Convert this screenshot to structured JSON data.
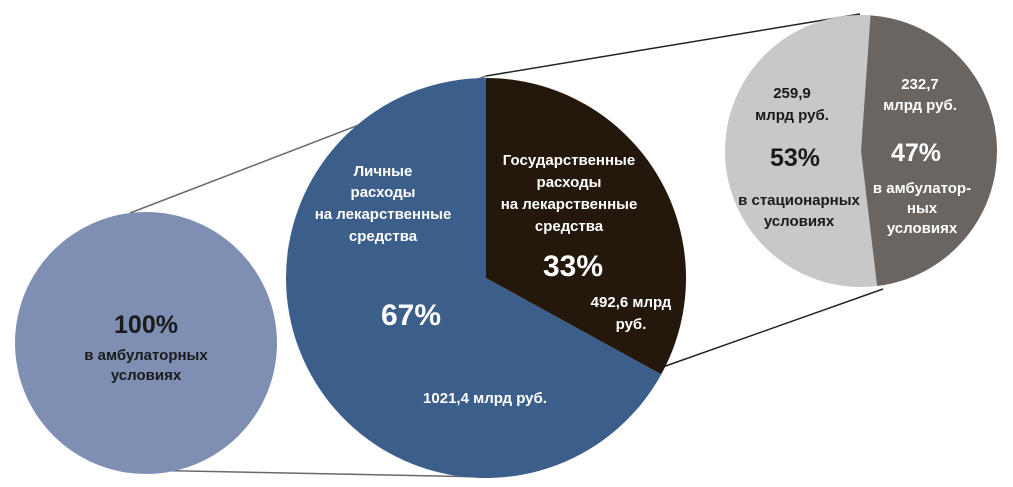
{
  "chart_data": [
    {
      "type": "pie",
      "id": "left-small",
      "slices": [
        {
          "label": "в амбулаторных условиях",
          "value": 100,
          "percent_text": "100%",
          "color": "#7f8fb4"
        }
      ],
      "label_lines": {
        "pct": "100%",
        "l1": "в амбулаторных",
        "l2": "условиях"
      }
    },
    {
      "type": "pie",
      "id": "main",
      "slices": [
        {
          "label": "Личные расходы на лекарственные средства",
          "value": 67,
          "percent_text": "67%",
          "amount": "1021,4 млрд руб.",
          "color": "#3b5f8a"
        },
        {
          "label": "Государственные расходы на лекарственные средства",
          "value": 33,
          "percent_text": "33%",
          "amount": "492,6 млрд руб.",
          "color": "#24180d"
        }
      ],
      "label_lines": {
        "personal": {
          "l1": "Личные",
          "l2": "расходы",
          "l3": "на лекарственные",
          "l4": "средства",
          "pct": "67%",
          "amount": "1021,4 млрд руб."
        },
        "state": {
          "l1": "Государственные",
          "l2": "расходы",
          "l3": "на лекарственные",
          "l4": "средства",
          "pct": "33%",
          "amount1": "492,6 млрд",
          "amount2": "руб."
        }
      }
    },
    {
      "type": "pie",
      "id": "right-small",
      "slices": [
        {
          "label": "в стационарных условиях",
          "value": 53,
          "percent_text": "53%",
          "amount": "259,9 млрд руб.",
          "color": "#c8c8c8"
        },
        {
          "label": "в амбулаторных условиях",
          "value": 47,
          "percent_text": "47%",
          "amount": "232,7 млрд руб.",
          "color": "#6a6560"
        }
      ],
      "label_lines": {
        "inpatient": {
          "a1": "259,9",
          "a2": "млрд руб.",
          "pct": "53%",
          "l1": "в стационарных",
          "l2": "условиях"
        },
        "outpatient": {
          "a1": "232,7",
          "a2": "млрд руб.",
          "pct": "47%",
          "l1": "в амбулатор-",
          "l2": "ных",
          "l3": "условиях"
        }
      }
    }
  ]
}
